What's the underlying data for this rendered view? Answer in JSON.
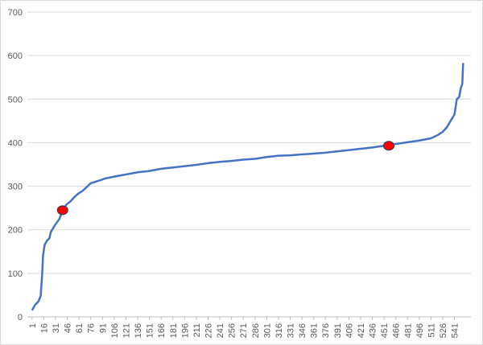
{
  "chart_data": {
    "type": "line",
    "x": [
      1,
      5,
      9,
      12,
      14,
      15,
      17,
      20,
      23,
      25,
      30,
      36,
      40,
      45,
      50,
      55,
      60,
      66,
      72,
      76,
      85,
      95,
      106,
      121,
      136,
      151,
      166,
      181,
      196,
      211,
      226,
      241,
      256,
      271,
      286,
      301,
      316,
      331,
      346,
      361,
      376,
      391,
      406,
      421,
      436,
      451,
      466,
      481,
      496,
      511,
      520,
      526,
      531,
      536,
      541,
      544,
      547,
      549,
      551,
      552
    ],
    "series": [
      {
        "color": "#4472c4",
        "values": [
          15,
          28,
          35,
          48,
          100,
          140,
          165,
          175,
          180,
          195,
          210,
          225,
          245,
          258,
          265,
          275,
          283,
          290,
          300,
          307,
          312,
          318,
          322,
          327,
          332,
          335,
          340,
          343,
          346,
          349,
          353,
          356,
          358,
          361,
          363,
          367,
          370,
          371,
          373,
          375,
          377,
          380,
          383,
          386,
          389,
          393,
          397,
          401,
          405,
          410,
          418,
          425,
          435,
          450,
          465,
          500,
          505,
          525,
          535,
          583
        ]
      }
    ],
    "highlights": {
      "color": "#ff0000",
      "x": [
        40,
        457
      ],
      "values": [
        245,
        393
      ]
    },
    "xlim": [
      -5,
      562
    ],
    "xticks": [
      1,
      16,
      31,
      46,
      61,
      76,
      91,
      106,
      121,
      136,
      151,
      166,
      181,
      196,
      211,
      226,
      241,
      256,
      271,
      286,
      301,
      316,
      331,
      346,
      361,
      376,
      391,
      406,
      421,
      436,
      451,
      466,
      481,
      496,
      511,
      526,
      541
    ],
    "ylim": [
      0,
      700
    ],
    "yticks": [
      0,
      100,
      200,
      300,
      400,
      500,
      600,
      700
    ],
    "grid": true
  }
}
